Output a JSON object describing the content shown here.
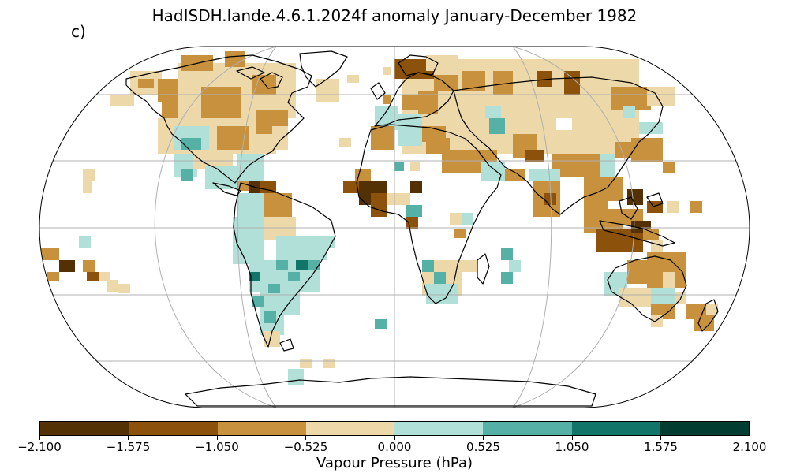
{
  "title": "HadISDH.lande.4.6.1.2024f anomaly January-December 1982",
  "panel_label": "c)",
  "colorbar": {
    "label": "Vapour Pressure (hPa)",
    "ticks": [
      "−2.100",
      "−1.575",
      "−1.050",
      "−0.525",
      "0.000",
      "0.525",
      "1.050",
      "1.575",
      "2.100"
    ],
    "colors": [
      "#543005",
      "#8c510a",
      "#bf812d",
      "#dfc27d",
      "#c7eae5",
      "#80cdc1",
      "#35978f",
      "#01665e"
    ],
    "display_colors": [
      "#543005",
      "#8c510a",
      "#c8913e",
      "#ecd8a8",
      "#b0e0d8",
      "#55b0a5",
      "#11756a",
      "#013d30"
    ]
  }
}
